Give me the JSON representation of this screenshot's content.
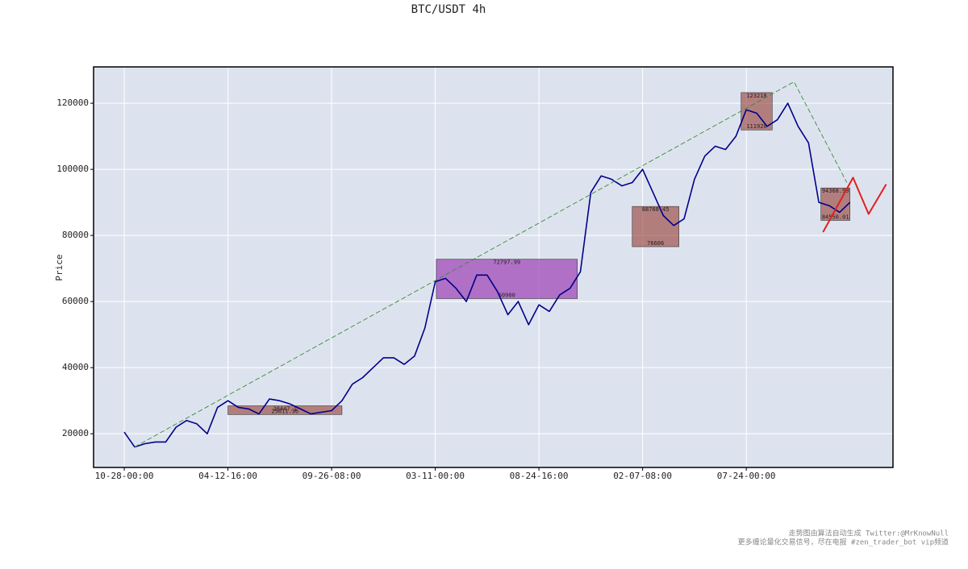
{
  "chart_data": {
    "type": "line",
    "title": "BTC/USDT 4h",
    "y_label": "Price",
    "xlim": [
      -2.96,
      74.15
    ],
    "ylim": [
      9800,
      131000
    ],
    "xticks": [
      {
        "value": 0,
        "label": "10-28-00:00"
      },
      {
        "value": 10,
        "label": "04-12-16:00"
      },
      {
        "value": 20,
        "label": "09-26-08:00"
      },
      {
        "value": 30,
        "label": "03-11-00:00"
      },
      {
        "value": 40,
        "label": "08-24-16:00"
      },
      {
        "value": 50,
        "label": "02-07-08:00"
      },
      {
        "value": 60,
        "label": "07-24-00:00"
      }
    ],
    "yticks": [
      20000,
      40000,
      60000,
      80000,
      100000,
      120000
    ],
    "grid": true,
    "background": "#dde3ee",
    "series": [
      {
        "color": "#00008b",
        "width": 1.6,
        "dash": "",
        "x": [
          0,
          1,
          2,
          3,
          4,
          5,
          6,
          7,
          8,
          9,
          10,
          11,
          12,
          13,
          14,
          15,
          16,
          17,
          18,
          19,
          20,
          21,
          22,
          23,
          24,
          25,
          26,
          27,
          28,
          29,
          30,
          31,
          32,
          33,
          34,
          35,
          36,
          37,
          38,
          39,
          40,
          41,
          42,
          43,
          44,
          45,
          46,
          47,
          48,
          49,
          50,
          51,
          52,
          53,
          54,
          55,
          56,
          57,
          58,
          59,
          60,
          61,
          62,
          63,
          64,
          65,
          66,
          67,
          68,
          69,
          70
        ],
        "values": [
          20500,
          16000,
          17000,
          17500,
          17500,
          22000,
          24000,
          23000,
          20000,
          28000,
          30000,
          28000,
          27500,
          26000,
          30500,
          30000,
          29000,
          27500,
          26000,
          26500,
          27000,
          30000,
          35000,
          37000,
          40000,
          43000,
          43000,
          41000,
          43500,
          52000,
          66000,
          67000,
          64000,
          60000,
          68000,
          68000,
          63000,
          56000,
          60000,
          53000,
          59000,
          57000,
          62000,
          64000,
          69000,
          93000,
          98000,
          97000,
          95000,
          96000,
          100000,
          93000,
          86000,
          83000,
          85000,
          97000,
          104000,
          107000,
          106000,
          110000,
          118000,
          117000,
          113000,
          115000,
          120000,
          113000,
          108000,
          90000,
          89000,
          87000,
          90000
        ]
      },
      {
        "color": "#3a8a3a",
        "width": 0.9,
        "dash": "6 3",
        "x": [
          1,
          64.6,
          69.7
        ],
        "values": [
          16000,
          126500,
          96000
        ]
      },
      {
        "color": "#e02020",
        "width": 2,
        "dash": "",
        "x": [
          67.4,
          70.3,
          71.8,
          73.5
        ],
        "values": [
          81000,
          97500,
          86500,
          95500
        ]
      }
    ],
    "zones": [
      {
        "x0": 10,
        "x1": 21,
        "high": 28447.1,
        "low": 25811.36,
        "color": "#a0524d"
      },
      {
        "x0": 30.1,
        "x1": 43.7,
        "high": 72797.99,
        "low": 60900,
        "color": "#9b3fb5"
      },
      {
        "x0": 49,
        "x1": 53.5,
        "high": 88768.45,
        "low": 76606.0,
        "color": "#a0524d"
      },
      {
        "x0": 59.5,
        "x1": 62.5,
        "high": 123218.0,
        "low": 111920.0,
        "color": "#a0524d"
      },
      {
        "x0": 67.2,
        "x1": 70,
        "high": 94368.99,
        "low": 84550.01,
        "color": "#a0524d"
      }
    ]
  },
  "footer": [
    "走势图由算法自动生成  Twitter:@MrKnowNull",
    "更多缠论量化交易信号，尽在电报 #zen_trader_bot vip频道"
  ]
}
